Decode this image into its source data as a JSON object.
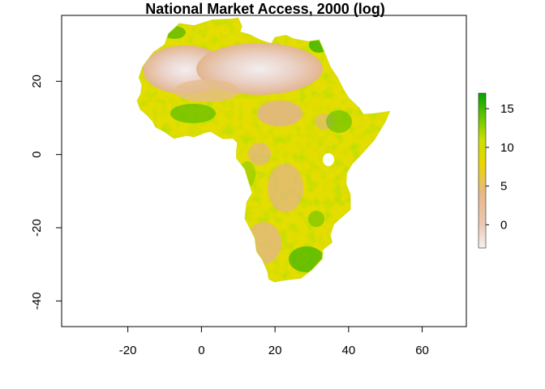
{
  "map": {
    "title": "National Market Access, 2000 (log)",
    "x_ticks": [
      "-20",
      "0",
      "20",
      "40",
      "60"
    ],
    "y_ticks": [
      "-40",
      "-20",
      "0",
      "20"
    ],
    "x_range": [
      -38,
      72
    ],
    "y_range": [
      -47,
      38
    ],
    "legend": {
      "ticks": [
        "0",
        "5",
        "10",
        "15"
      ],
      "range": [
        -3,
        17
      ]
    },
    "colors": {
      "low": "#f2f2f2",
      "mid_low": "#e6b88a",
      "mid": "#e6d900",
      "mid_high": "#9fd000",
      "high": "#00a600",
      "frame": "#000000"
    }
  }
}
